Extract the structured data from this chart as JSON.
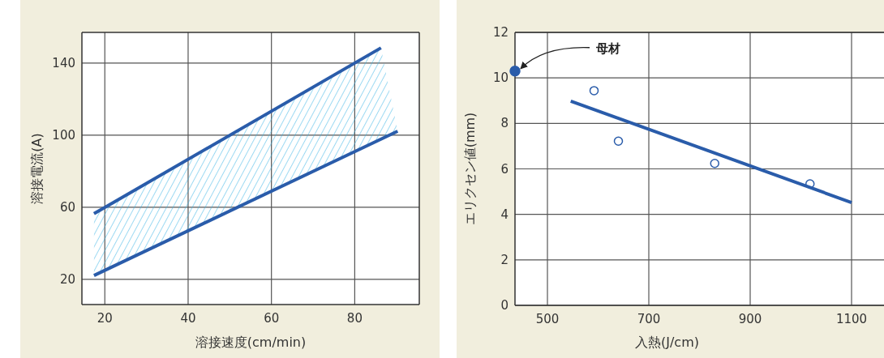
{
  "chart_data": [
    {
      "type": "line",
      "xlabel": "溶接速度(cm/min)",
      "ylabel": "溶接電流(A)",
      "xlim": [
        14.5,
        95.5
      ],
      "ylim": [
        6,
        157
      ],
      "xticks": [
        20,
        40,
        60,
        80
      ],
      "yticks": [
        20,
        60,
        100,
        140
      ],
      "grid": true,
      "series": [
        {
          "color": "#2a5caa",
          "x": [
            17.4,
            86.3,
            90.3
          ],
          "values": [
            56.4,
            148.4,
            null
          ],
          "lower": [
            22.1,
            97.8,
            102.2
          ],
          "upper": [
            56.4,
            148.4,
            102.2
          ]
        },
        {
          "color": "#2a5caa",
          "x": [
            17.4,
            90.3
          ],
          "values": [
            22.1,
            102.2
          ]
        }
      ]
    },
    {
      "type": "scatter",
      "xlabel": "入熱(J/cm)",
      "ylabel": "エリクセン値(mm)",
      "xlim": [
        436,
        1164
      ],
      "ylim": [
        0,
        12
      ],
      "xticks": [
        500,
        700,
        900,
        1100
      ],
      "yticks": [
        0,
        2,
        4,
        6,
        8,
        10,
        12
      ],
      "grid": true,
      "annotations": [
        {
          "text": "母材",
          "x": 436,
          "y": 10.3
        }
      ],
      "series": [
        {
          "color": "#2a5caa",
          "marker": "circle",
          "x": [
            592,
            640,
            830,
            1018
          ],
          "values": [
            9.44,
            7.22,
            6.24,
            5.34
          ]
        },
        {
          "type": "line",
          "color": "#2a5caa",
          "x": [
            546,
            1100
          ],
          "values": [
            8.98,
            4.52
          ]
        },
        {
          "color": "#2a5caa",
          "marker": "circle",
          "x": [
            436
          ],
          "values": [
            10.3
          ]
        }
      ]
    }
  ]
}
